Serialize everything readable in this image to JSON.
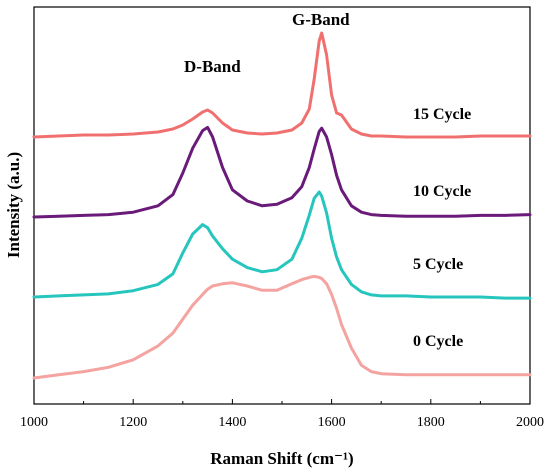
{
  "chart_data": {
    "type": "line",
    "xlabel": "Raman Shift (cm⁻¹)",
    "ylabel": "Intensity (a.u.)",
    "xlim": [
      1000,
      2000
    ],
    "xticks": [
      1000,
      1200,
      1400,
      1600,
      1800,
      2000
    ],
    "xtick_labels": [
      "1000",
      "1200",
      "1400",
      "1600",
      "1800",
      "2000"
    ],
    "yticks_shown": false,
    "grid": false,
    "legend": "none",
    "annotations": [
      "D-Band",
      "G-Band"
    ],
    "x": [
      1000,
      1050,
      1100,
      1150,
      1200,
      1250,
      1280,
      1300,
      1320,
      1340,
      1350,
      1360,
      1380,
      1400,
      1430,
      1460,
      1490,
      1520,
      1540,
      1555,
      1565,
      1575,
      1580,
      1590,
      1600,
      1610,
      1620,
      1640,
      1660,
      1680,
      1700,
      1750,
      1800,
      1850,
      1900,
      1950,
      2000
    ],
    "series": [
      {
        "name": "0 Cycle",
        "color": "#f4a3a0",
        "values": [
          0.0,
          0.03,
          0.06,
          0.1,
          0.17,
          0.3,
          0.42,
          0.55,
          0.68,
          0.78,
          0.83,
          0.86,
          0.88,
          0.89,
          0.86,
          0.82,
          0.82,
          0.88,
          0.92,
          0.94,
          0.95,
          0.94,
          0.93,
          0.88,
          0.78,
          0.65,
          0.5,
          0.28,
          0.12,
          0.06,
          0.04,
          0.03,
          0.03,
          0.03,
          0.03,
          0.03,
          0.03
        ]
      },
      {
        "name": "5 Cycle",
        "color": "#26c6bf",
        "values": [
          0.0,
          0.01,
          0.02,
          0.03,
          0.06,
          0.12,
          0.22,
          0.42,
          0.6,
          0.69,
          0.66,
          0.58,
          0.46,
          0.36,
          0.28,
          0.24,
          0.26,
          0.36,
          0.56,
          0.78,
          0.94,
          1.0,
          0.96,
          0.8,
          0.56,
          0.38,
          0.26,
          0.12,
          0.05,
          0.02,
          0.01,
          0.01,
          0.0,
          0.0,
          0.0,
          -0.01,
          -0.01
        ]
      },
      {
        "name": "10 Cycle",
        "color": "#6a1b7a",
        "values": [
          0.0,
          0.01,
          0.02,
          0.03,
          0.06,
          0.14,
          0.28,
          0.55,
          0.86,
          1.08,
          1.12,
          1.0,
          0.62,
          0.34,
          0.2,
          0.14,
          0.16,
          0.24,
          0.38,
          0.62,
          0.85,
          1.07,
          1.11,
          1.0,
          0.78,
          0.52,
          0.34,
          0.14,
          0.06,
          0.03,
          0.02,
          0.01,
          0.01,
          0.01,
          0.02,
          0.02,
          0.03
        ]
      },
      {
        "name": "15 Cycle",
        "color": "#f07070",
        "values": [
          0.0,
          0.01,
          0.02,
          0.02,
          0.03,
          0.05,
          0.08,
          0.12,
          0.18,
          0.25,
          0.27,
          0.24,
          0.14,
          0.07,
          0.04,
          0.03,
          0.04,
          0.07,
          0.14,
          0.28,
          0.58,
          0.96,
          1.04,
          0.82,
          0.42,
          0.24,
          0.22,
          0.08,
          0.03,
          0.01,
          0.01,
          0.0,
          0.0,
          0.0,
          0.01,
          0.01,
          0.01
        ]
      }
    ]
  }
}
